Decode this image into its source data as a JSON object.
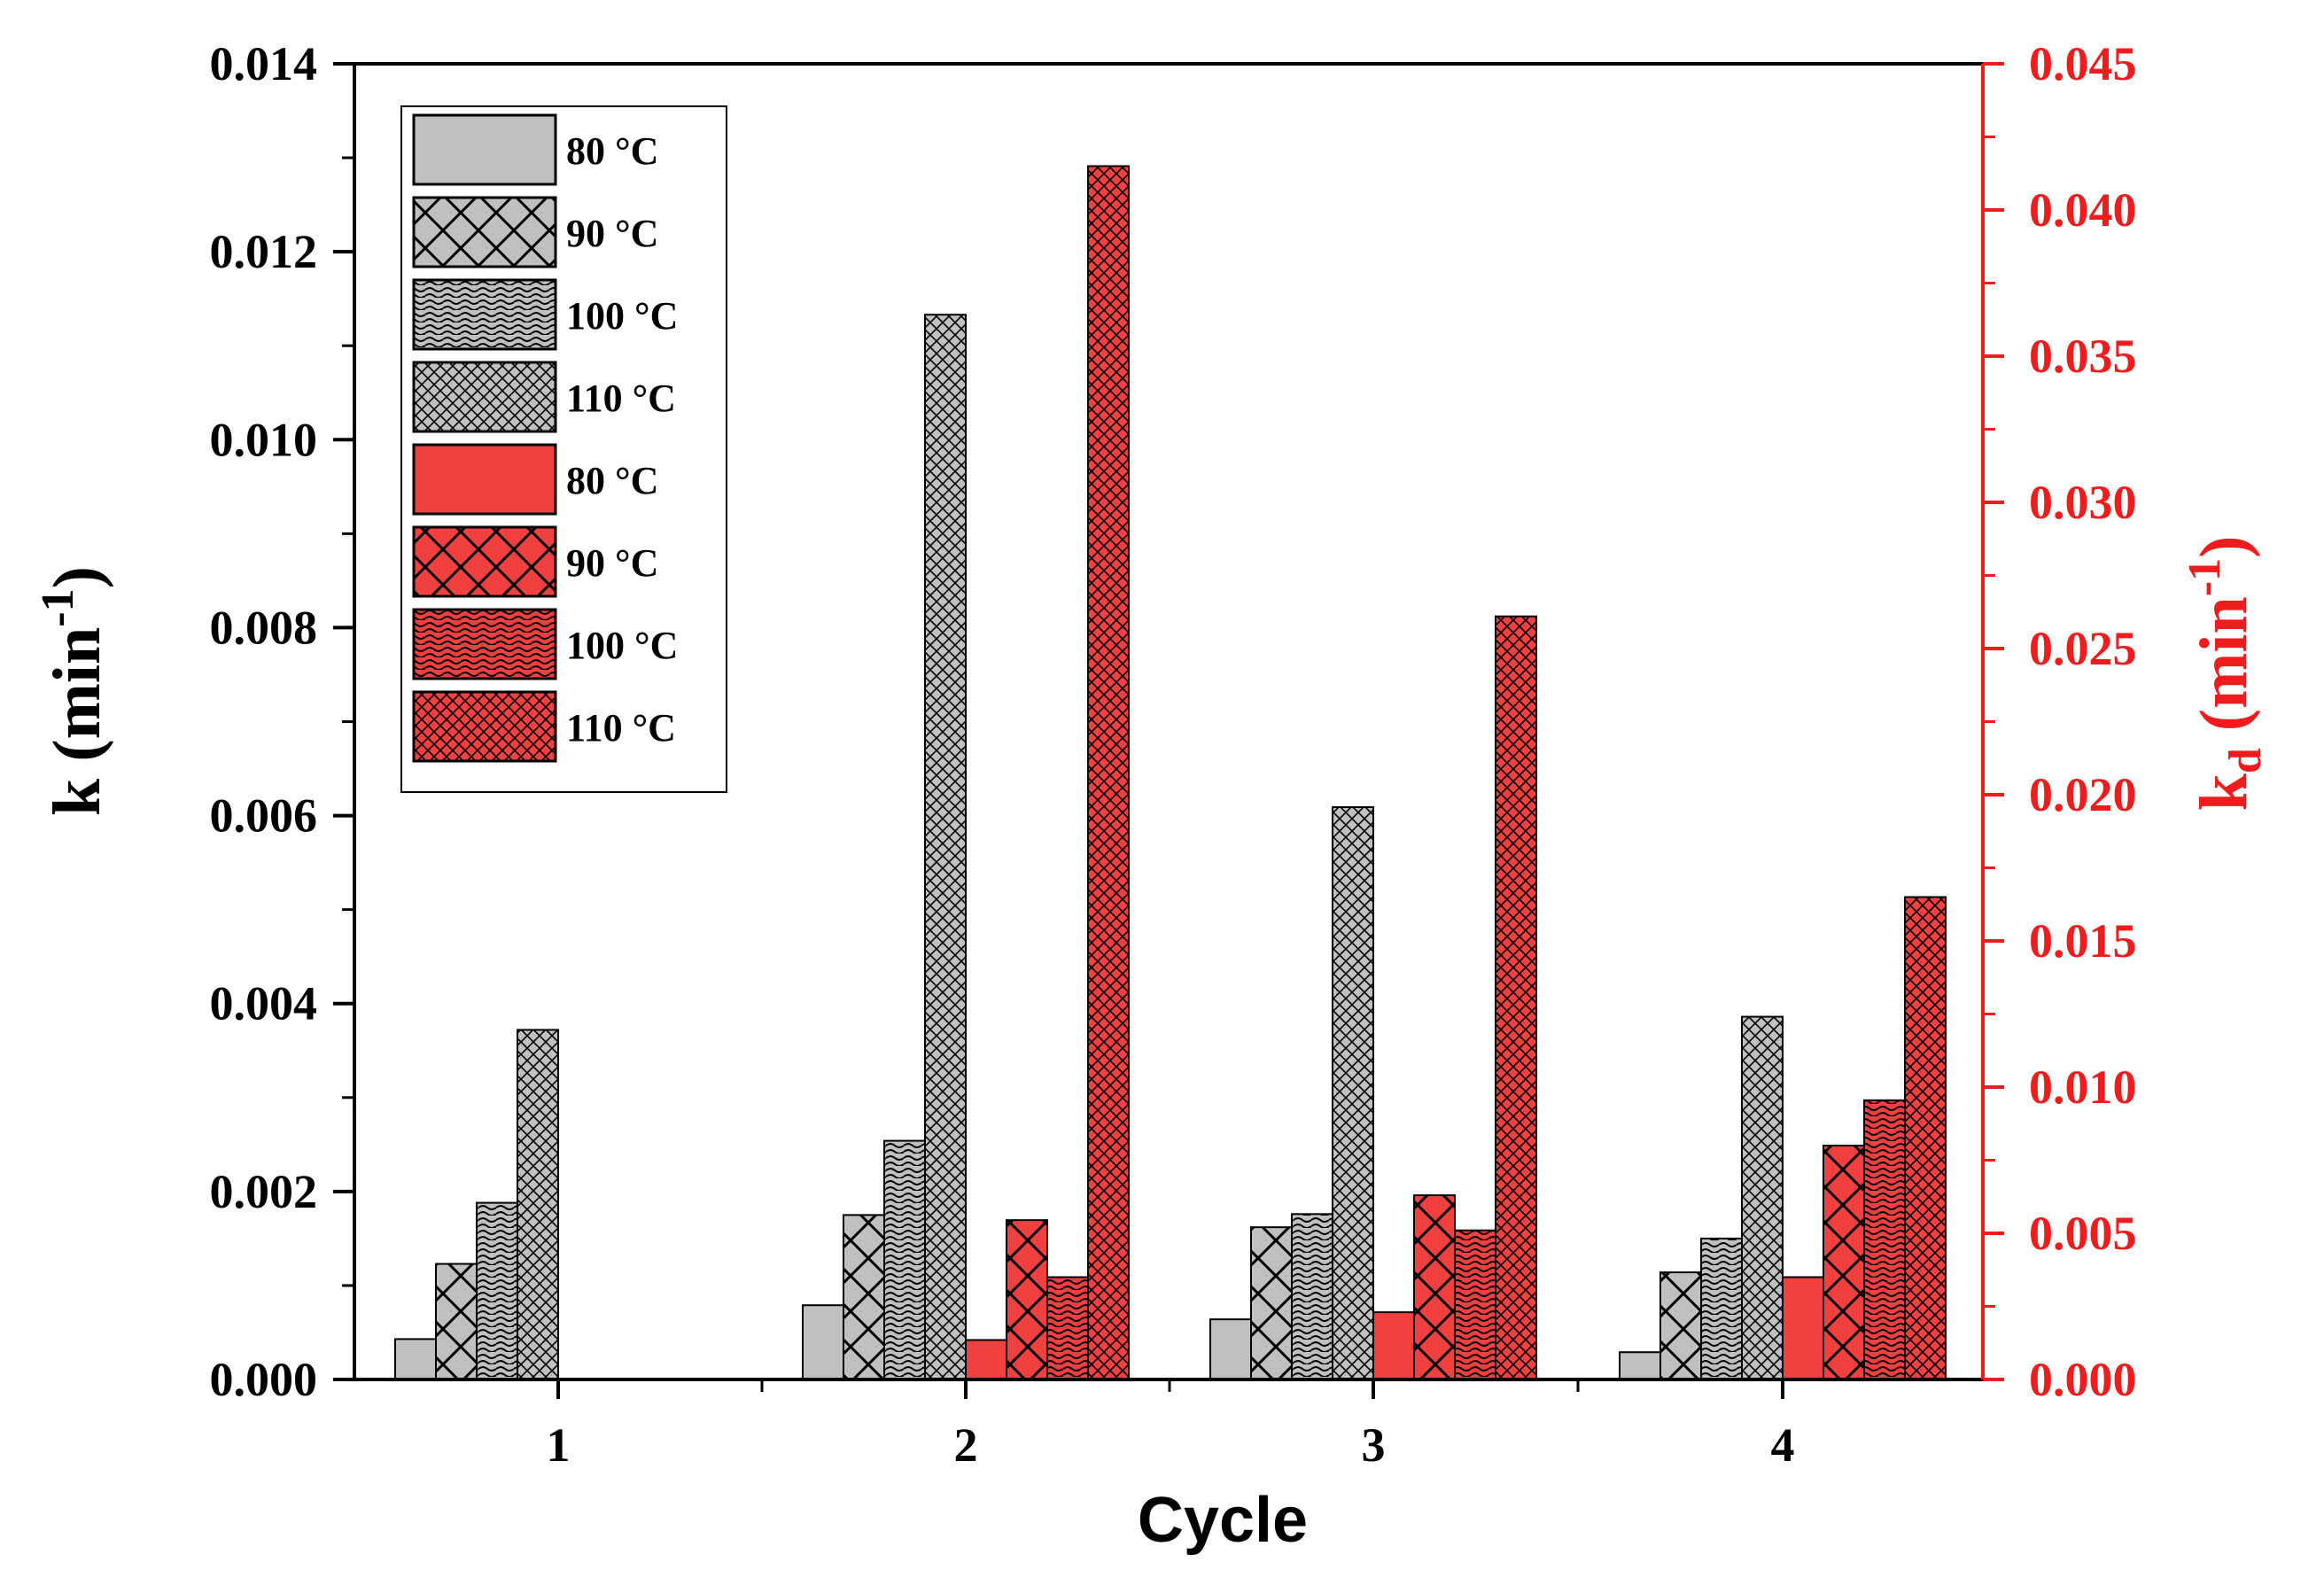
{
  "chart_data": {
    "type": "bar",
    "xlabel": "Cycle",
    "ylabel_left": {
      "base": "k (min",
      "sup": "-1",
      "close": ")"
    },
    "ylabel_right": {
      "base": "k",
      "sub": "d",
      "mid": " (min",
      "sup": "-1",
      "close": ")"
    },
    "categories": [
      "1",
      "2",
      "3",
      "4"
    ],
    "y_left": {
      "lim": [
        0,
        0.014
      ],
      "ticks": [
        "0.000",
        "0.002",
        "0.004",
        "0.006",
        "0.008",
        "0.010",
        "0.012",
        "0.014"
      ],
      "tick_values": [
        0,
        0.002,
        0.004,
        0.006,
        0.008,
        0.01,
        0.012,
        0.014
      ]
    },
    "y_right": {
      "lim": [
        0,
        0.045
      ],
      "ticks": [
        "0.000",
        "0.005",
        "0.010",
        "0.015",
        "0.020",
        "0.025",
        "0.030",
        "0.035",
        "0.040",
        "0.045"
      ],
      "tick_values": [
        0,
        0.005,
        0.01,
        0.015,
        0.02,
        0.025,
        0.03,
        0.035,
        0.04,
        0.045
      ],
      "color": "#ee1c1c"
    },
    "series": [
      {
        "name": "80 °C",
        "axis": "left",
        "pattern": "none",
        "color": "#c0c0c0",
        "values": [
          0.00043,
          0.00079,
          0.00064,
          0.00029
        ]
      },
      {
        "name": "90 °C",
        "axis": "left",
        "pattern": "cross",
        "color": "#c0c0c0",
        "values": [
          0.00123,
          0.00175,
          0.00162,
          0.00114
        ]
      },
      {
        "name": "100 °C",
        "axis": "left",
        "pattern": "wave",
        "color": "#c0c0c0",
        "values": [
          0.00188,
          0.00254,
          0.00176,
          0.0015
        ]
      },
      {
        "name": "110 °C",
        "axis": "left",
        "pattern": "fine-cross",
        "color": "#c0c0c0",
        "values": [
          0.00372,
          0.01133,
          0.00609,
          0.00386
        ]
      },
      {
        "name": "80 °C",
        "axis": "right",
        "pattern": "none",
        "color": "#f04040",
        "values": [
          null,
          0.00135,
          0.0023,
          0.0035
        ]
      },
      {
        "name": "90 °C",
        "axis": "right",
        "pattern": "cross",
        "color": "#f04040",
        "values": [
          null,
          0.00545,
          0.0063,
          0.008
        ]
      },
      {
        "name": "100 °C",
        "axis": "right",
        "pattern": "wave",
        "color": "#f04040",
        "values": [
          null,
          0.0035,
          0.0051,
          0.00955
        ]
      },
      {
        "name": "110 °C",
        "axis": "right",
        "pattern": "fine-cross",
        "color": "#f04040",
        "values": [
          null,
          0.0415,
          0.0261,
          0.0165
        ]
      }
    ],
    "legend_position": "top-left"
  }
}
